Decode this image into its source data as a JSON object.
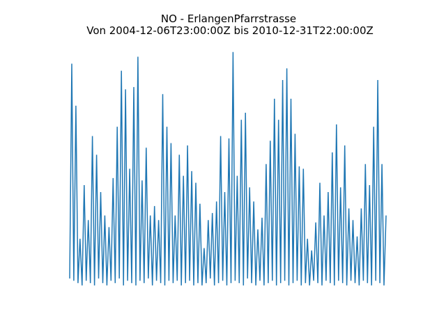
{
  "chart_data": {
    "type": "line",
    "title": "NO - ErlangenPfarrstrasse",
    "subtitle": "Von 2004-12-06T23:00:00Z bis 2010-12-31T22:00:00Z",
    "color": "#1f77b4",
    "ylim": [
      -5,
      105
    ],
    "values": [
      3,
      95,
      2,
      77,
      1,
      20,
      0,
      43,
      2,
      28,
      1,
      64,
      0,
      56,
      3,
      40,
      1,
      30,
      0,
      25,
      2,
      46,
      1,
      68,
      3,
      92,
      0,
      84,
      2,
      50,
      1,
      85,
      0,
      98,
      2,
      45,
      1,
      59,
      3,
      30,
      0,
      34,
      2,
      28,
      1,
      82,
      0,
      68,
      2,
      61,
      1,
      30,
      2,
      56,
      0,
      47,
      1,
      60,
      2,
      49,
      0,
      44,
      1,
      35,
      0,
      16,
      1,
      28,
      3,
      31,
      0,
      36,
      1,
      64,
      2,
      40,
      0,
      63,
      1,
      100,
      2,
      47,
      1,
      71,
      0,
      74,
      3,
      42,
      1,
      36,
      0,
      24,
      2,
      29,
      0,
      52,
      1,
      62,
      2,
      80,
      0,
      71,
      1,
      88,
      2,
      93,
      0,
      80,
      1,
      65,
      2,
      51,
      0,
      50,
      1,
      20,
      0,
      15,
      2,
      27,
      1,
      44,
      0,
      30,
      2,
      40,
      1,
      57,
      0,
      69,
      2,
      42,
      1,
      60,
      0,
      33,
      2,
      28,
      1,
      21,
      0,
      33,
      2,
      52,
      1,
      43,
      0,
      68,
      2,
      88,
      1,
      52,
      0,
      30
    ]
  }
}
